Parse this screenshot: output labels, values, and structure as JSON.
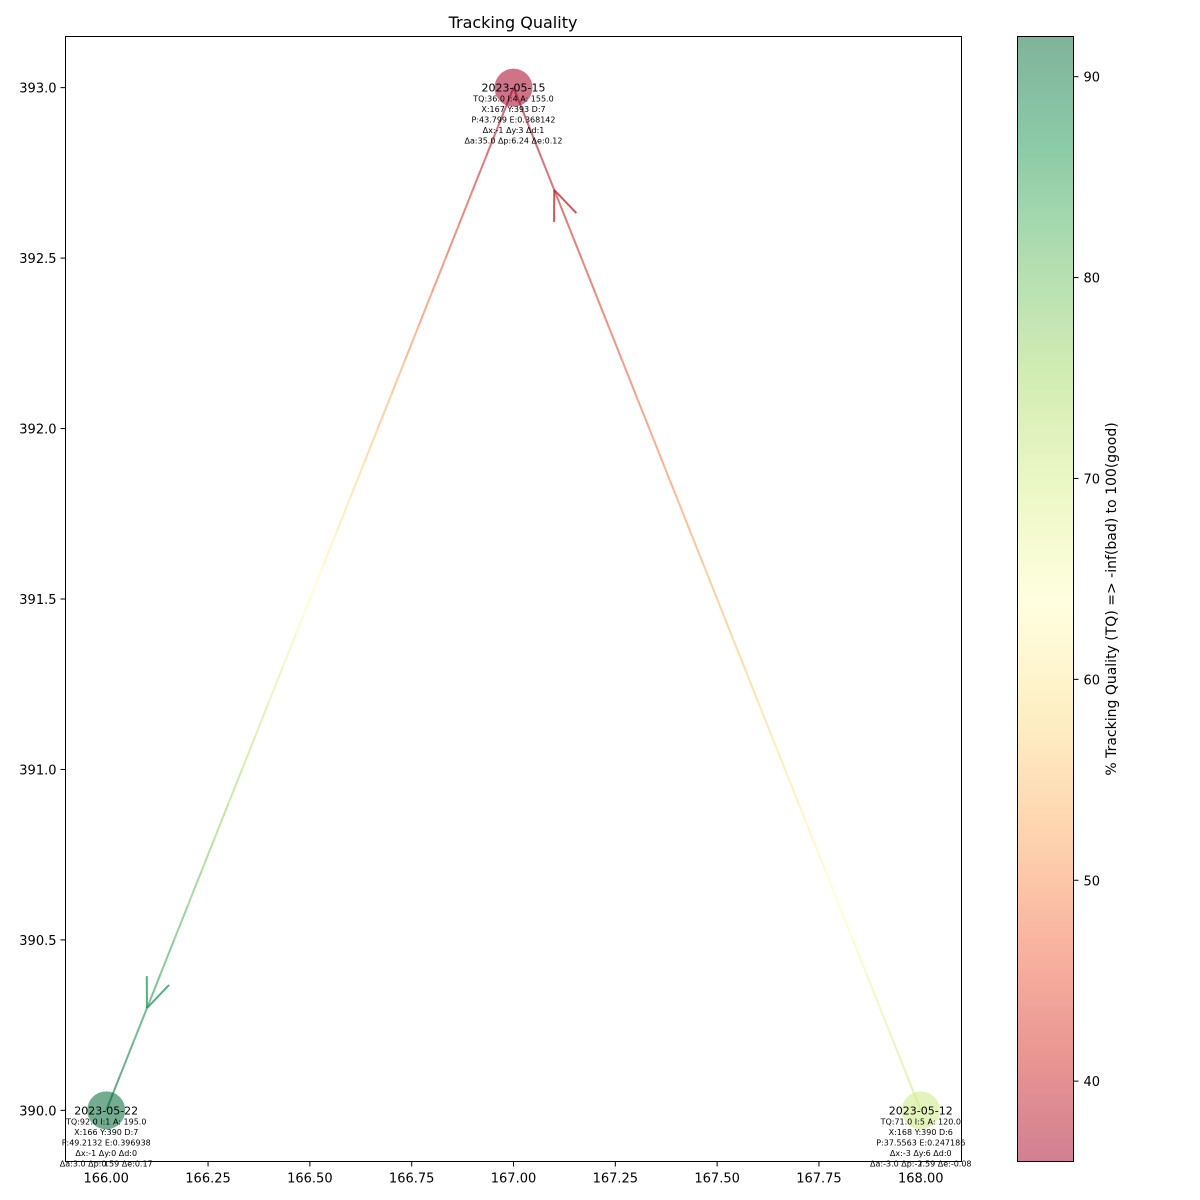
{
  "chart_data": {
    "type": "scatter",
    "title": "Tracking Quality",
    "xlabel": "",
    "ylabel": "",
    "xlim": [
      165.9,
      168.1
    ],
    "ylim": [
      389.85,
      393.15
    ],
    "x_ticks": [
      166.0,
      166.25,
      166.5,
      166.75,
      167.0,
      167.25,
      167.5,
      167.75,
      168.0
    ],
    "x_tick_labels": [
      "166.00",
      "166.25",
      "166.50",
      "166.75",
      "167.00",
      "167.25",
      "167.50",
      "167.75",
      "168.00"
    ],
    "y_ticks": [
      390.0,
      390.5,
      391.0,
      391.5,
      392.0,
      392.5,
      393.0
    ],
    "y_tick_labels": [
      "390.0",
      "390.5",
      "391.0",
      "391.5",
      "392.0",
      "392.5",
      "393.0"
    ],
    "grid": false,
    "points": [
      {
        "date": "2023-05-12",
        "x": 168,
        "y": 390,
        "tq": 71.0,
        "lines": [
          "TQ:71.0 I:5 A: 120.0",
          "X:168 Y:390 D:6",
          "P:37.5563 E:0.247186",
          "Δx:-3 Δy:6 Δd:0",
          "Δa:-3.0 Δp:-2.59 Δe:-0.08"
        ]
      },
      {
        "date": "2023-05-15",
        "x": 167,
        "y": 393,
        "tq": 36.0,
        "lines": [
          "TQ:36.0 I:4 A: 155.0",
          "X:167 Y:393 D:7",
          "P:43.799 E:0.368142",
          "Δx:-1 Δy:3 Δd:1",
          "Δa:35.0 Δp:6.24 Δe:0.12"
        ]
      },
      {
        "date": "2023-05-22",
        "x": 166,
        "y": 390,
        "tq": 92.0,
        "lines": [
          "TQ:92.0 I:1 A: 195.0",
          "X:166 Y:390 D:7",
          "P:49.2132 E:0.396938",
          "Δx:-1 Δy:0 Δd:0",
          "Δa:3.0 Δp:0.59 Δe:0.17"
        ]
      }
    ],
    "path_order": [
      "2023-05-12",
      "2023-05-15",
      "2023-05-22"
    ],
    "colorbar": {
      "label": "% Tracking Quality (TQ) =>  -inf(bad) to 100(good)",
      "range": [
        36,
        92
      ],
      "ticks": [
        40,
        50,
        60,
        70,
        80,
        90
      ],
      "tick_labels": [
        "40",
        "50",
        "60",
        "70",
        "80",
        "90"
      ],
      "colormap": "RdYlGn",
      "colors": [
        "#a50026",
        "#d73027",
        "#f46d43",
        "#fdae61",
        "#fee08b",
        "#ffffbf",
        "#d9ef8b",
        "#a6d96a",
        "#66bd63",
        "#1a9850",
        "#006837"
      ],
      "alpha": 0.5
    }
  }
}
